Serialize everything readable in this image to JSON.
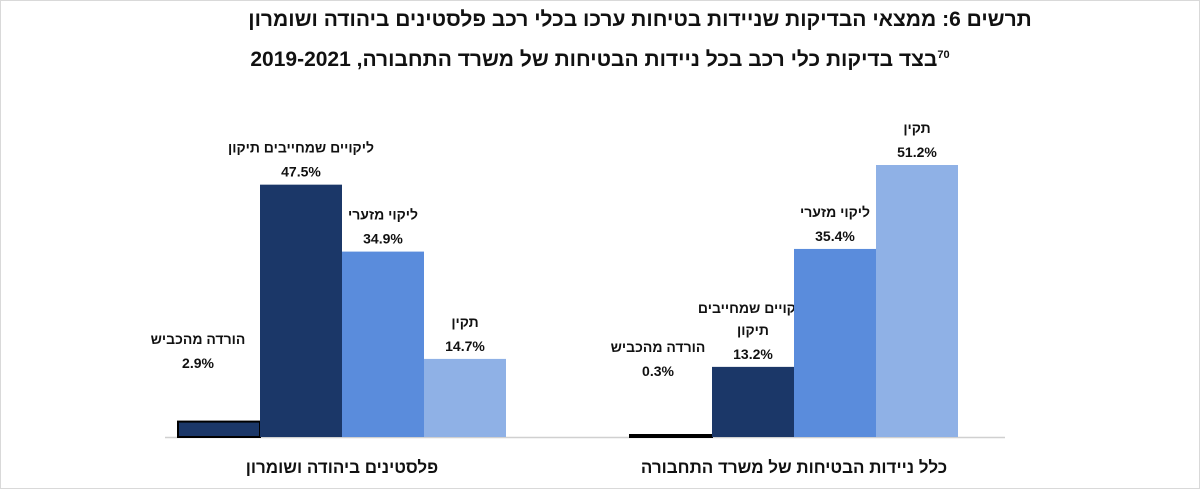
{
  "title_line1": "תרשים 6: ממצאי הבדיקות שניידות בטיחות ערכו בכלי רכב פלסטינים ביהודה ושומרון",
  "title_line2": "בצד בדיקות כלי רכב בכל ניידות הבטיחות של משרד התחבורה, 2019-2021",
  "footnote_mark": "70",
  "chart_data": {
    "type": "bar",
    "title": "תרשים 6: ממצאי הבדיקות שניידות בטיחות ערכו בכלי רכב פלסטינים ביהודה ושומרון בצד בדיקות כלי רכב בכל ניידות הבטיחות של משרד התחבורה, 2019-2021",
    "xlabel": "",
    "ylabel": "",
    "ylim": [
      0,
      51.2
    ],
    "grid": false,
    "legend": "none",
    "groups": [
      {
        "name": "פלסטינים ביהודה ושומרון",
        "bars": [
          {
            "label": "הורדה מהכביש",
            "value": 2.9,
            "display": "2.9%"
          },
          {
            "label": "ליקויים שמחייבים תיקון",
            "value": 47.5,
            "display": "47.5%"
          },
          {
            "label": "ליקוי מזערי",
            "value": 34.9,
            "display": "34.9%"
          },
          {
            "label": "תקין",
            "value": 14.7,
            "display": "14.7%"
          }
        ]
      },
      {
        "name": "כלל ניידות הבטיחות של משרד התחבורה",
        "bars": [
          {
            "label": "הורדה מהכביש",
            "value": 0.3,
            "display": "0.3%"
          },
          {
            "label": "ליקויים שמחייבים תיקון",
            "value": 13.2,
            "display": "13.2%"
          },
          {
            "label": "ליקוי מזערי",
            "value": 35.4,
            "display": "35.4%"
          },
          {
            "label": "תקין",
            "value": 51.2,
            "display": "51.2%"
          }
        ]
      }
    ],
    "colors": [
      "#1b3768",
      "#1b3768",
      "#5a8cdc",
      "#8fb1e6"
    ]
  }
}
